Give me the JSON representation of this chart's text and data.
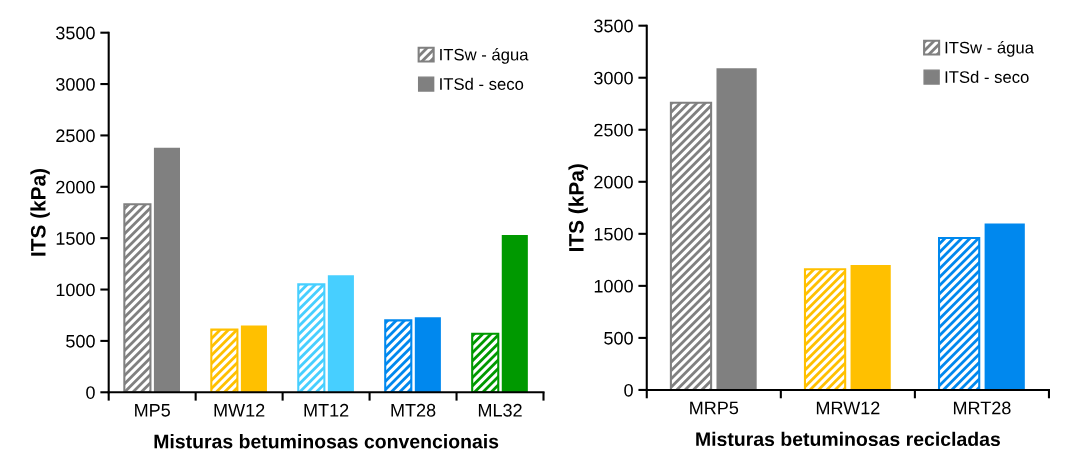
{
  "chart_data": [
    {
      "type": "bar",
      "xlabel": "Misturas betuminosas convencionais",
      "ylabel": "ITS (kPa)",
      "categories": [
        "MP5",
        "MW12",
        "MT12",
        "MT28",
        "ML32"
      ],
      "ylim": [
        0,
        3500
      ],
      "yticks": [
        0,
        500,
        1000,
        1500,
        2000,
        2500,
        3000,
        3500
      ],
      "legend": "top right",
      "grid": false,
      "series": [
        {
          "name": "ITSw - água",
          "color": "#808080",
          "colors": [
            "#808080",
            "#ffc000",
            "#47cfff",
            "#0088ee",
            "#009900"
          ],
          "values": [
            1830,
            610,
            1050,
            700,
            570
          ]
        },
        {
          "name": "ITSd - seco",
          "color": "#808080",
          "colors": [
            "#808080",
            "#ffc000",
            "#47cfff",
            "#0088ee",
            "#009900"
          ],
          "values": [
            2380,
            650,
            1140,
            730,
            1530
          ]
        }
      ]
    },
    {
      "type": "bar",
      "xlabel": "Misturas betuminosas recicladas",
      "ylabel": "ITS (kPa)",
      "categories": [
        "MRP5",
        "MRW12",
        "MRT28"
      ],
      "ylim": [
        0,
        3500
      ],
      "yticks": [
        0,
        500,
        1000,
        1500,
        2000,
        2500,
        3000,
        3500
      ],
      "legend": "top right",
      "grid": false,
      "series": [
        {
          "name": "ITSw - água",
          "color": "#808080",
          "colors": [
            "#808080",
            "#ffc000",
            "#0088ee"
          ],
          "values": [
            2760,
            1160,
            1460
          ]
        },
        {
          "name": "ITSd - seco",
          "color": "#808080",
          "colors": [
            "#808080",
            "#ffc000",
            "#0088ee"
          ],
          "values": [
            3090,
            1200,
            1600
          ]
        }
      ]
    }
  ]
}
